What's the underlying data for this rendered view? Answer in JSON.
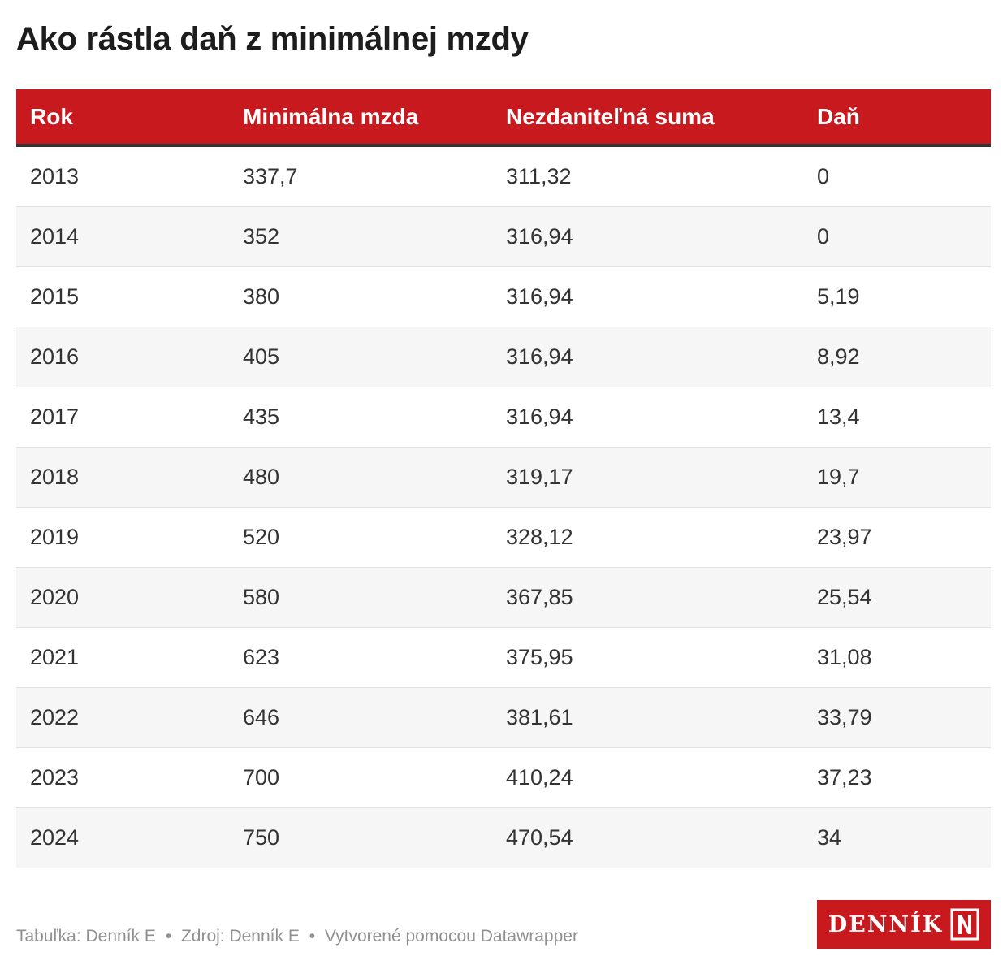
{
  "title": "Ako rástla daň z minimálnej mzdy",
  "chart_data": {
    "type": "table",
    "columns": [
      "Rok",
      "Minimálna mzda",
      "Nezdaniteľná suma",
      "Daň"
    ],
    "rows": [
      [
        "2013",
        "337,7",
        "311,32",
        "0"
      ],
      [
        "2014",
        "352",
        "316,94",
        "0"
      ],
      [
        "2015",
        "380",
        "316,94",
        "5,19"
      ],
      [
        "2016",
        "405",
        "316,94",
        "8,92"
      ],
      [
        "2017",
        "435",
        "316,94",
        "13,4"
      ],
      [
        "2018",
        "480",
        "319,17",
        "19,7"
      ],
      [
        "2019",
        "520",
        "328,12",
        "23,97"
      ],
      [
        "2020",
        "580",
        "367,85",
        "25,54"
      ],
      [
        "2021",
        "623",
        "375,95",
        "31,08"
      ],
      [
        "2022",
        "646",
        "381,61",
        "33,79"
      ],
      [
        "2023",
        "700",
        "410,24",
        "37,23"
      ],
      [
        "2024",
        "750",
        "470,54",
        "34"
      ]
    ]
  },
  "footer": {
    "table_credit": "Tabuľka: Denník E",
    "source": "Zdroj: Denník E",
    "tool": "Vytvorené pomocou Datawrapper",
    "separator": "•"
  },
  "logo": {
    "text": "DENNÍK",
    "icon": "n-logo-icon"
  },
  "colors": {
    "header_background": "#c8191f",
    "header_text": "#ffffff",
    "stripe": "#f6f6f6"
  }
}
